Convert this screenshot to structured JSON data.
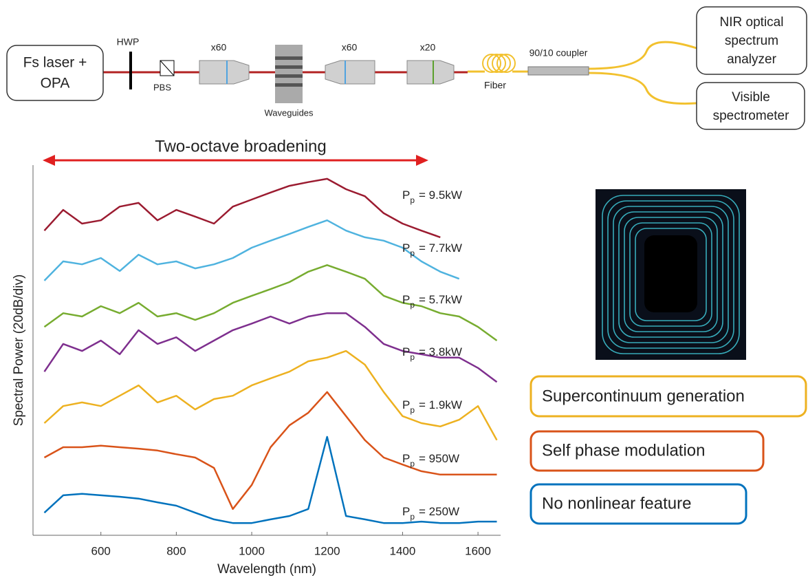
{
  "setup": {
    "laser": [
      "Fs laser +",
      "OPA"
    ],
    "hwp": "HWP",
    "pbs": "PBS",
    "objective_1": "x60",
    "waveguides": "Waveguides",
    "objective_2": "x60",
    "objective_3": "x20",
    "fiber": "Fiber",
    "coupler": "90/10 coupler",
    "nir": [
      "NIR optical",
      "spectrum",
      "analyzer"
    ],
    "visible": [
      "Visible",
      "spectrometer"
    ]
  },
  "regimes": [
    "Supercontinuum generation",
    "Self phase modulation",
    "No nonlinear feature"
  ],
  "chart_data": {
    "type": "line",
    "title": "Two-octave broadening",
    "xlabel": "Wavelength (nm)",
    "ylabel": "Spectral Power (20dB/div)",
    "label_symbol": "P",
    "label_subscript": "p",
    "x": [
      450,
      500,
      550,
      600,
      650,
      700,
      750,
      800,
      850,
      900,
      950,
      1000,
      1050,
      1100,
      1150,
      1200,
      1250,
      1300,
      1350,
      1400,
      1450,
      1500,
      1550,
      1600,
      1650
    ],
    "xlim": [
      420,
      1660
    ],
    "xticks": [
      600,
      800,
      1000,
      1200,
      1400,
      1600
    ],
    "ylim": [
      0,
      10
    ],
    "series": [
      {
        "name": "= 9.5kW",
        "color": "#9b1b30",
        "values": [
          8.23,
          8.79,
          8.42,
          8.51,
          8.88,
          8.98,
          8.51,
          8.79,
          8.61,
          8.42,
          8.88,
          9.07,
          9.26,
          9.44,
          9.54,
          9.63,
          9.35,
          9.16,
          8.7,
          8.42,
          8.23,
          8.05,
          null,
          null,
          null
        ]
      },
      {
        "name": "= 7.7kW",
        "color": "#4fb3df",
        "values": [
          6.88,
          7.4,
          7.32,
          7.49,
          7.14,
          7.58,
          7.32,
          7.4,
          7.21,
          7.32,
          7.49,
          7.77,
          7.96,
          8.14,
          8.33,
          8.51,
          8.23,
          8.05,
          7.96,
          7.77,
          7.4,
          7.12,
          6.93,
          null,
          null
        ]
      },
      {
        "name": "= 5.7kW",
        "color": "#77ac30",
        "values": [
          5.63,
          6.0,
          5.91,
          6.19,
          6.0,
          6.28,
          5.91,
          6.0,
          5.82,
          6.0,
          6.28,
          6.47,
          6.65,
          6.84,
          7.12,
          7.3,
          7.12,
          6.93,
          6.47,
          6.28,
          6.19,
          6.0,
          5.91,
          5.63,
          5.26
        ]
      },
      {
        "name": "= 3.8kW",
        "color": "#7e2f8e",
        "values": [
          4.42,
          5.17,
          4.98,
          5.26,
          4.89,
          5.54,
          5.17,
          5.35,
          4.98,
          5.26,
          5.54,
          5.72,
          5.91,
          5.72,
          5.91,
          6.0,
          6.0,
          5.63,
          5.17,
          4.98,
          4.89,
          4.8,
          4.8,
          4.52,
          4.14
        ]
      },
      {
        "name": "= 1.9kW",
        "color": "#edb120",
        "values": [
          3.03,
          3.49,
          3.59,
          3.49,
          3.77,
          4.05,
          3.59,
          3.77,
          3.4,
          3.68,
          3.77,
          4.05,
          4.24,
          4.42,
          4.7,
          4.8,
          4.98,
          4.61,
          3.87,
          3.22,
          3.03,
          2.94,
          3.12,
          3.49,
          2.57
        ]
      },
      {
        "name": "= 950W",
        "color": "#d95319",
        "values": [
          2.1,
          2.38,
          2.38,
          2.42,
          2.38,
          2.34,
          2.29,
          2.19,
          2.1,
          1.82,
          0.71,
          1.36,
          2.38,
          2.97,
          3.31,
          3.87,
          3.22,
          2.57,
          2.1,
          1.91,
          1.73,
          1.64,
          1.64,
          1.64,
          1.64
        ]
      },
      {
        "name": "= 250W",
        "color": "#0072bd",
        "values": [
          0.61,
          1.08,
          1.12,
          1.08,
          1.04,
          0.99,
          0.89,
          0.8,
          0.61,
          0.43,
          0.33,
          0.33,
          0.43,
          0.52,
          0.71,
          2.66,
          0.52,
          0.43,
          0.33,
          0.33,
          0.37,
          0.33,
          0.33,
          0.37,
          0.37
        ]
      }
    ]
  }
}
